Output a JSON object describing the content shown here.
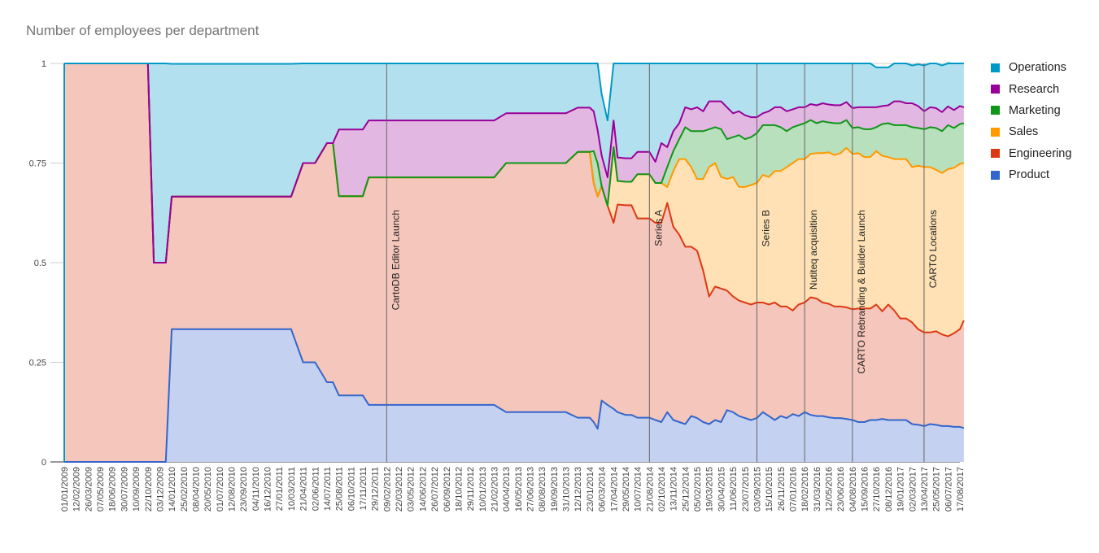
{
  "chart_data": {
    "type": "area",
    "stacked": true,
    "normalized": true,
    "title": "Number of employees per department",
    "xlabel": "",
    "ylabel": "",
    "ylim": [
      0,
      1
    ],
    "y_ticks": [
      "0",
      "0.25",
      "0.5",
      "0.75",
      "1"
    ],
    "grid": true,
    "legend_position": "right",
    "x_tick_labels": [
      "01/01/2009",
      "12/02/2009",
      "26/03/2009",
      "07/05/2009",
      "18/06/2009",
      "30/07/2009",
      "10/09/2009",
      "22/10/2009",
      "03/12/2009",
      "14/01/2010",
      "25/02/2010",
      "08/04/2010",
      "20/05/2010",
      "01/07/2010",
      "12/08/2010",
      "23/09/2010",
      "04/11/2010",
      "16/12/2010",
      "27/01/2011",
      "10/03/2011",
      "21/04/2011",
      "02/06/2011",
      "14/07/2011",
      "25/08/2011",
      "06/10/2011",
      "17/11/2011",
      "29/12/2011",
      "09/02/2012",
      "22/03/2012",
      "03/05/2012",
      "14/06/2012",
      "26/07/2012",
      "06/09/2012",
      "18/10/2012",
      "29/11/2012",
      "10/01/2013",
      "21/02/2013",
      "04/04/2013",
      "16/05/2013",
      "27/06/2013",
      "08/08/2013",
      "19/09/2013",
      "31/10/2013",
      "12/12/2013",
      "23/01/2014",
      "06/03/2014",
      "17/04/2014",
      "29/05/2014",
      "10/07/2014",
      "21/08/2014",
      "02/10/2014",
      "13/11/2014",
      "25/12/2014",
      "05/02/2015",
      "19/03/2015",
      "30/04/2015",
      "11/06/2015",
      "23/07/2015",
      "03/09/2015",
      "15/10/2015",
      "26/11/2015",
      "07/01/2016",
      "18/02/2016",
      "31/03/2016",
      "12/05/2016",
      "23/06/2016",
      "04/08/2016",
      "15/09/2016",
      "27/10/2016",
      "08/12/2016",
      "19/01/2017",
      "02/03/2017",
      "13/04/2017",
      "25/05/2017",
      "06/07/2017",
      "17/08/2017"
    ],
    "annotations": [
      {
        "date": "09/02/2012",
        "label": "CartoDB Editor Launch"
      },
      {
        "date": "21/08/2014",
        "label": "Series A"
      },
      {
        "date": "03/09/2015",
        "label": "Series B"
      },
      {
        "date": "18/02/2016",
        "label": "Nutiteq acquisition"
      },
      {
        "date": "04/08/2016",
        "label": "CARTO Rebranding & Builder Launch"
      },
      {
        "date": "13/04/2017",
        "label": "CARTO Locations"
      }
    ],
    "x": [
      "01/01/2009",
      "12/02/2009",
      "22/10/2009",
      "12/11/2009",
      "03/12/2009",
      "24/12/2009",
      "14/01/2010",
      "25/02/2010",
      "10/03/2011",
      "21/04/2011",
      "02/06/2011",
      "14/07/2011",
      "04/08/2011",
      "25/08/2011",
      "06/10/2011",
      "17/11/2011",
      "08/12/2011",
      "29/12/2011",
      "09/02/2012",
      "22/03/2012",
      "03/05/2012",
      "21/02/2013",
      "04/04/2013",
      "08/08/2013",
      "31/10/2013",
      "12/12/2013",
      "02/01/2014",
      "23/01/2014",
      "06/02/2014",
      "20/02/2014",
      "06/03/2014",
      "27/03/2014",
      "17/04/2014",
      "01/05/2014",
      "29/05/2014",
      "19/06/2014",
      "10/07/2014",
      "31/07/2014",
      "21/08/2014",
      "11/09/2014",
      "02/10/2014",
      "23/10/2014",
      "13/11/2014",
      "04/12/2014",
      "25/12/2014",
      "15/01/2015",
      "05/02/2015",
      "26/02/2015",
      "19/03/2015",
      "09/04/2015",
      "30/04/2015",
      "21/05/2015",
      "11/06/2015",
      "02/07/2015",
      "23/07/2015",
      "13/08/2015",
      "03/09/2015",
      "24/09/2015",
      "15/10/2015",
      "05/11/2015",
      "26/11/2015",
      "17/12/2015",
      "07/01/2016",
      "28/01/2016",
      "18/02/2016",
      "10/03/2016",
      "31/03/2016",
      "21/04/2016",
      "12/05/2016",
      "02/06/2016",
      "23/06/2016",
      "14/07/2016",
      "04/08/2016",
      "25/08/2016",
      "15/09/2016",
      "06/10/2016",
      "27/10/2016",
      "17/11/2016",
      "08/12/2016",
      "29/12/2016",
      "19/01/2017",
      "09/02/2017",
      "02/03/2017",
      "23/03/2017",
      "13/04/2017",
      "04/05/2017",
      "25/05/2017",
      "15/06/2017",
      "06/07/2017",
      "27/07/2017",
      "17/08/2017",
      "31/08/2017"
    ],
    "series": [
      {
        "name": "Product",
        "color": "#3366cc",
        "fill": "#c5d1f0",
        "values": [
          0,
          0,
          0,
          0,
          0,
          0,
          0.333,
          0.333,
          0.333,
          0.25,
          0.25,
          0.2,
          0.2,
          0.167,
          0.167,
          0.167,
          0.143,
          0.143,
          0.143,
          0.143,
          0.143,
          0.143,
          0.125,
          0.125,
          0.125,
          0.111,
          0.111,
          0.111,
          0.1,
          0.083,
          0.154,
          0.143,
          0.133,
          0.125,
          0.118,
          0.118,
          0.111,
          0.111,
          0.111,
          0.105,
          0.1,
          0.125,
          0.105,
          0.1,
          0.095,
          0.115,
          0.11,
          0.1,
          0.095,
          0.105,
          0.1,
          0.13,
          0.125,
          0.115,
          0.11,
          0.105,
          0.11,
          0.125,
          0.115,
          0.105,
          0.115,
          0.11,
          0.12,
          0.115,
          0.125,
          0.118,
          0.115,
          0.115,
          0.112,
          0.11,
          0.11,
          0.108,
          0.105,
          0.1,
          0.1,
          0.105,
          0.105,
          0.108,
          0.105,
          0.105,
          0.105,
          0.105,
          0.095,
          0.093,
          0.09,
          0.095,
          0.093,
          0.09,
          0.09,
          0.088,
          0.088,
          0.085
        ]
      },
      {
        "name": "Engineering",
        "color": "#dc3912",
        "fill": "#f5c6bb",
        "values": [
          1,
          1,
          1,
          0.5,
          0.5,
          0.5,
          0.333,
          0.333,
          0.333,
          0.5,
          0.5,
          0.6,
          0.6,
          0.5,
          0.5,
          0.5,
          0.571,
          0.571,
          0.571,
          0.571,
          0.571,
          0.571,
          0.625,
          0.625,
          0.625,
          0.667,
          0.667,
          0.667,
          0.6,
          0.583,
          0.538,
          0.5,
          0.467,
          0.521,
          0.526,
          0.526,
          0.5,
          0.5,
          0.5,
          0.495,
          0.5,
          0.525,
          0.485,
          0.47,
          0.445,
          0.425,
          0.42,
          0.38,
          0.32,
          0.335,
          0.335,
          0.3,
          0.29,
          0.29,
          0.29,
          0.29,
          0.29,
          0.275,
          0.28,
          0.295,
          0.275,
          0.28,
          0.26,
          0.28,
          0.275,
          0.295,
          0.295,
          0.285,
          0.285,
          0.28,
          0.28,
          0.28,
          0.278,
          0.285,
          0.285,
          0.28,
          0.29,
          0.27,
          0.29,
          0.275,
          0.255,
          0.255,
          0.255,
          0.24,
          0.235,
          0.23,
          0.235,
          0.23,
          0.225,
          0.235,
          0.245,
          0.27
        ]
      },
      {
        "name": "Sales",
        "color": "#ff9900",
        "fill": "#ffe1b5",
        "values": [
          0,
          0,
          0,
          0,
          0,
          0,
          0,
          0,
          0,
          0,
          0,
          0,
          0,
          0,
          0,
          0,
          0,
          0,
          0,
          0,
          0,
          0,
          0,
          0,
          0,
          0,
          0,
          0,
          0,
          0,
          0,
          0,
          0.19,
          0.059,
          0.059,
          0.059,
          0.111,
          0.111,
          0.111,
          0.1,
          0.1,
          0.04,
          0.14,
          0.19,
          0.22,
          0.2,
          0.18,
          0.23,
          0.325,
          0.31,
          0.28,
          0.28,
          0.3,
          0.285,
          0.29,
          0.3,
          0.3,
          0.32,
          0.32,
          0.33,
          0.34,
          0.35,
          0.37,
          0.365,
          0.36,
          0.36,
          0.365,
          0.375,
          0.38,
          0.38,
          0.385,
          0.4,
          0.39,
          0.39,
          0.38,
          0.38,
          0.385,
          0.39,
          0.37,
          0.38,
          0.4,
          0.4,
          0.39,
          0.41,
          0.415,
          0.415,
          0.405,
          0.405,
          0.42,
          0.415,
          0.415,
          0.395
        ]
      },
      {
        "name": "Marketing",
        "color": "#109618",
        "fill": "#b8e0bc",
        "values": [
          0,
          0,
          0,
          0,
          0,
          0,
          0,
          0,
          0,
          0,
          0,
          0,
          0,
          0,
          0,
          0,
          0,
          0,
          0,
          0,
          0,
          0,
          0,
          0,
          0,
          0,
          0,
          0,
          0.08,
          0.083,
          0,
          0,
          0,
          0,
          0,
          0,
          0,
          0,
          0,
          0,
          0,
          0.05,
          0.05,
          0.05,
          0.08,
          0.09,
          0.12,
          0.12,
          0.095,
          0.09,
          0.12,
          0.1,
          0.1,
          0.13,
          0.12,
          0.12,
          0.125,
          0.125,
          0.13,
          0.115,
          0.11,
          0.09,
          0.09,
          0.085,
          0.09,
          0.085,
          0.075,
          0.08,
          0.075,
          0.08,
          0.075,
          0.07,
          0.065,
          0.065,
          0.07,
          0.07,
          0.06,
          0.08,
          0.085,
          0.085,
          0.085,
          0.085,
          0.1,
          0.095,
          0.095,
          0.1,
          0.105,
          0.105,
          0.11,
          0.1,
          0.1,
          0.1
        ]
      },
      {
        "name": "Research",
        "color": "#990099",
        "fill": "#e2b8e2",
        "values": [
          0,
          0,
          0,
          0,
          0,
          0,
          0,
          0,
          0,
          0,
          0,
          0,
          0,
          0.167,
          0.167,
          0.167,
          0.143,
          0.143,
          0.143,
          0.143,
          0.143,
          0.143,
          0.125,
          0.125,
          0.125,
          0.111,
          0.111,
          0.111,
          0.1,
          0.083,
          0.077,
          0.071,
          0.067,
          0.059,
          0.059,
          0.059,
          0.056,
          0.056,
          0.056,
          0.053,
          0.1,
          0.05,
          0.05,
          0.04,
          0.05,
          0.055,
          0.06,
          0.05,
          0.07,
          0.065,
          0.07,
          0.08,
          0.06,
          0.06,
          0.06,
          0.05,
          0.04,
          0.03,
          0.035,
          0.045,
          0.05,
          0.05,
          0.045,
          0.045,
          0.04,
          0.04,
          0.045,
          0.045,
          0.045,
          0.045,
          0.045,
          0.045,
          0.05,
          0.05,
          0.055,
          0.055,
          0.05,
          0.045,
          0.045,
          0.06,
          0.06,
          0.055,
          0.06,
          0.055,
          0.045,
          0.05,
          0.05,
          0.048,
          0.047,
          0.045,
          0.045,
          0.04
        ]
      },
      {
        "name": "Operations",
        "color": "#0099c6",
        "fill": "#b3e0ee",
        "values": [
          0,
          0,
          0,
          0.5,
          0.5,
          0.5,
          0.333,
          0.333,
          0.333,
          0.25,
          0.25,
          0.2,
          0.2,
          0.167,
          0.167,
          0.167,
          0.143,
          0.143,
          0.143,
          0.143,
          0.143,
          0.143,
          0.125,
          0.125,
          0.125,
          0.111,
          0.111,
          0.111,
          0.12,
          0.168,
          0.154,
          0.143,
          0.143,
          0.236,
          0.238,
          0.238,
          0.222,
          0.222,
          0.222,
          0.247,
          0.2,
          0.21,
          0.17,
          0.15,
          0.11,
          0.115,
          0.11,
          0.12,
          0.095,
          0.095,
          0.095,
          0.11,
          0.125,
          0.12,
          0.13,
          0.135,
          0.135,
          0.125,
          0.12,
          0.11,
          0.11,
          0.12,
          0.115,
          0.11,
          0.11,
          0.102,
          0.105,
          0.1,
          0.103,
          0.105,
          0.105,
          0.097,
          0.112,
          0.11,
          0.11,
          0.11,
          0.1,
          0.097,
          0.095,
          0.095,
          0.095,
          0.1,
          0.095,
          0.105,
          0.115,
          0.11,
          0.112,
          0.117,
          0.113,
          0.117,
          0.107,
          0.11
        ]
      }
    ]
  }
}
